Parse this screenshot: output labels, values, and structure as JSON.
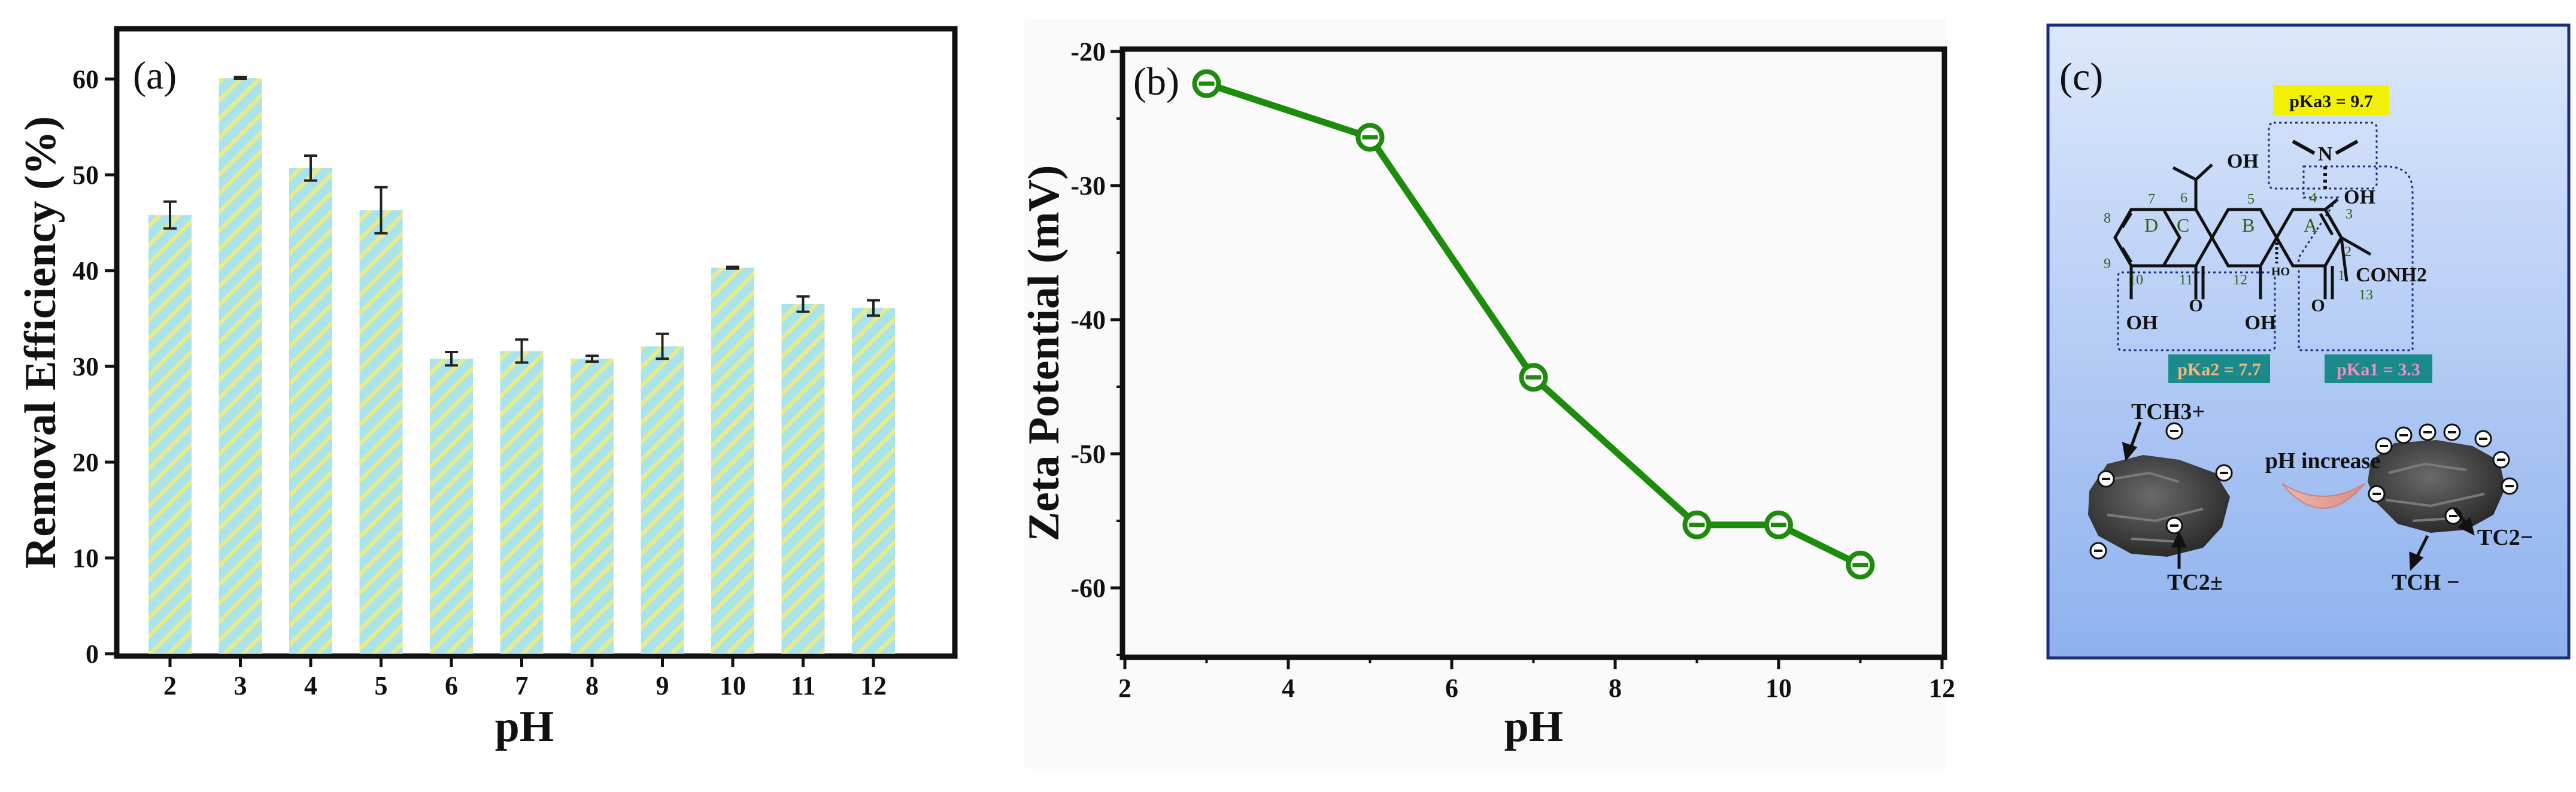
{
  "chart_data": [
    {
      "type": "bar",
      "panel_label": "(a)",
      "xlabel": "pH",
      "ylabel": "Removal Efficiency (%)",
      "categories": [
        "2",
        "3",
        "4",
        "5",
        "6",
        "7",
        "8",
        "9",
        "10",
        "11",
        "12"
      ],
      "values": [
        45.8,
        60.1,
        50.7,
        46.3,
        30.8,
        31.6,
        30.8,
        32.1,
        40.3,
        36.5,
        36.1
      ],
      "errors": [
        1.4,
        0.1,
        1.3,
        2.4,
        0.7,
        1.2,
        0.3,
        1.3,
        0.1,
        0.8,
        0.8
      ],
      "ylim": [
        0,
        65
      ],
      "yticks": [
        "0",
        "10",
        "20",
        "30",
        "40",
        "50",
        "60"
      ],
      "colors": {
        "bar": "#a8e4e9",
        "hatch": "#e8ea8e",
        "error": "#222222"
      }
    },
    {
      "type": "line",
      "panel_label": "(b)",
      "xlabel": "pH",
      "ylabel": "Zeta Potential (mV)",
      "x": [
        3,
        5,
        7,
        9,
        10,
        11
      ],
      "y": [
        -22.4,
        -26.4,
        -44.3,
        -55.3,
        -55.3,
        -58.3
      ],
      "xlim": [
        2,
        12
      ],
      "ylim": [
        -65,
        -20
      ],
      "xticks": [
        "2",
        "4",
        "6",
        "8",
        "10",
        "12"
      ],
      "yticks": [
        "-20",
        "-30",
        "-40",
        "-50",
        "-60"
      ],
      "colors": {
        "line": "#1d8c0c",
        "marker_face": "#ffffff",
        "marker_edge": "#1d8c0c"
      }
    }
  ],
  "panel_c": {
    "panel_label": "(c)",
    "pka3": "pKa3 = 9.7",
    "pka2": "pKa2 = 7.7",
    "pka1": "pKa1 = 3.3",
    "oh_top": "OH",
    "oh_right": "OH",
    "oh_bottom_left": "OH",
    "oh_bottom_mid": "OH",
    "ho_label": "HO",
    "conh2": "CONH2",
    "o_left": "O",
    "o_right": "O",
    "n_label": "N",
    "ring_a": "A",
    "ring_b": "B",
    "ring_c": "C",
    "ring_d": "D",
    "atom_numbers": [
      "1",
      "2",
      "3",
      "4",
      "5",
      "6",
      "7",
      "8",
      "9",
      "10",
      "11",
      "12",
      "13"
    ],
    "tch3_plus": "TCH3+",
    "tc2_zw": "TC2±",
    "ph_increase": "pH increase",
    "tc2_minus": "TC2−",
    "tch_minus": "TCH −",
    "colors": {
      "pka3_bg": "#f2f200",
      "pka2_bg": "#1a8a8a",
      "pka1_bg": "#1a8a8a",
      "pka2_text": "#f5b87a",
      "pka1_text": "#f08ec8",
      "bg_top": "#d8e6fb",
      "bg_bottom": "#8cb0ef"
    }
  }
}
